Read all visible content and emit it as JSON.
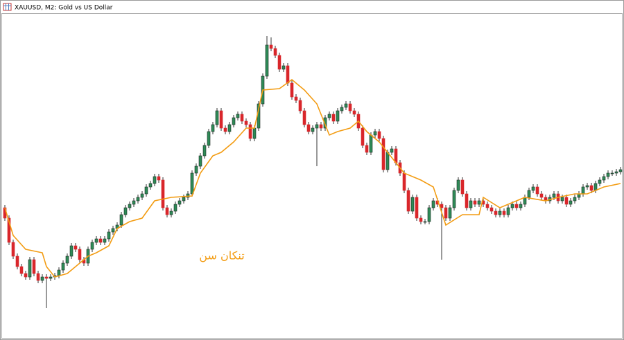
{
  "chart_data": {
    "type": "candlestick",
    "title": "XAUUSD, M2:  Gold vs US Dollar",
    "up_color": "#2e8b57",
    "down_color": "#d9262b",
    "ylim": [
      9,
      500
    ],
    "candles": [
      [
        200,
        204,
        181,
        185
      ],
      [
        185,
        189,
        146,
        150
      ],
      [
        150,
        154,
        126,
        130
      ],
      [
        130,
        134,
        111,
        115
      ],
      [
        115,
        119,
        101,
        105
      ],
      [
        105,
        109,
        96,
        100
      ],
      [
        100,
        129,
        96,
        125
      ],
      [
        125,
        129,
        101,
        105
      ],
      [
        105,
        109,
        91,
        95
      ],
      [
        95,
        104,
        91,
        100
      ],
      [
        100,
        104,
        55,
        98
      ],
      [
        98,
        104,
        94,
        100
      ],
      [
        100,
        106,
        96,
        102
      ],
      [
        102,
        114,
        98,
        110
      ],
      [
        110,
        124,
        106,
        120
      ],
      [
        120,
        134,
        116,
        130
      ],
      [
        130,
        149,
        126,
        145
      ],
      [
        145,
        149,
        136,
        140
      ],
      [
        140,
        144,
        121,
        125
      ],
      [
        125,
        129,
        116,
        120
      ],
      [
        120,
        144,
        116,
        140
      ],
      [
        140,
        154,
        136,
        150
      ],
      [
        150,
        159,
        146,
        155
      ],
      [
        155,
        159,
        146,
        150
      ],
      [
        150,
        159,
        146,
        155
      ],
      [
        155,
        169,
        151,
        165
      ],
      [
        165,
        174,
        161,
        170
      ],
      [
        170,
        179,
        166,
        175
      ],
      [
        175,
        194,
        171,
        190
      ],
      [
        190,
        204,
        186,
        200
      ],
      [
        200,
        209,
        196,
        205
      ],
      [
        205,
        214,
        201,
        210
      ],
      [
        210,
        219,
        206,
        215
      ],
      [
        215,
        224,
        211,
        220
      ],
      [
        220,
        234,
        216,
        230
      ],
      [
        230,
        239,
        226,
        235
      ],
      [
        235,
        249,
        231,
        245
      ],
      [
        245,
        249,
        236,
        240
      ],
      [
        240,
        244,
        196,
        200
      ],
      [
        200,
        204,
        186,
        190
      ],
      [
        190,
        199,
        186,
        195
      ],
      [
        195,
        209,
        191,
        205
      ],
      [
        205,
        214,
        201,
        210
      ],
      [
        210,
        219,
        206,
        215
      ],
      [
        215,
        224,
        211,
        220
      ],
      [
        220,
        254,
        216,
        250
      ],
      [
        250,
        264,
        246,
        260
      ],
      [
        260,
        279,
        256,
        275
      ],
      [
        275,
        294,
        271,
        290
      ],
      [
        290,
        314,
        286,
        310
      ],
      [
        310,
        324,
        306,
        320
      ],
      [
        320,
        344,
        316,
        340
      ],
      [
        340,
        344,
        311,
        315
      ],
      [
        315,
        319,
        306,
        310
      ],
      [
        310,
        324,
        306,
        320
      ],
      [
        320,
        334,
        316,
        330
      ],
      [
        330,
        339,
        326,
        335
      ],
      [
        335,
        339,
        321,
        325
      ],
      [
        325,
        329,
        316,
        320
      ],
      [
        320,
        324,
        296,
        300
      ],
      [
        300,
        319,
        296,
        315
      ],
      [
        315,
        354,
        311,
        350
      ],
      [
        350,
        394,
        346,
        390
      ],
      [
        390,
        448,
        386,
        435
      ],
      [
        435,
        446,
        426,
        430
      ],
      [
        430,
        434,
        416,
        420
      ],
      [
        420,
        424,
        396,
        400
      ],
      [
        400,
        409,
        396,
        405
      ],
      [
        405,
        409,
        376,
        380
      ],
      [
        380,
        384,
        356,
        360
      ],
      [
        360,
        364,
        351,
        355
      ],
      [
        355,
        359,
        336,
        340
      ],
      [
        340,
        344,
        316,
        320
      ],
      [
        320,
        324,
        306,
        310
      ],
      [
        310,
        319,
        306,
        315
      ],
      [
        315,
        324,
        260,
        320
      ],
      [
        320,
        324,
        311,
        315
      ],
      [
        315,
        334,
        311,
        330
      ],
      [
        330,
        339,
        326,
        335
      ],
      [
        335,
        339,
        321,
        325
      ],
      [
        325,
        344,
        321,
        340
      ],
      [
        340,
        349,
        336,
        345
      ],
      [
        345,
        354,
        341,
        350
      ],
      [
        350,
        354,
        336,
        340
      ],
      [
        340,
        344,
        331,
        335
      ],
      [
        335,
        339,
        311,
        315
      ],
      [
        315,
        319,
        286,
        290
      ],
      [
        290,
        294,
        276,
        280
      ],
      [
        280,
        309,
        276,
        305
      ],
      [
        305,
        314,
        301,
        310
      ],
      [
        310,
        314,
        296,
        300
      ],
      [
        300,
        304,
        251,
        255
      ],
      [
        255,
        284,
        251,
        280
      ],
      [
        280,
        289,
        276,
        285
      ],
      [
        285,
        289,
        261,
        265
      ],
      [
        265,
        269,
        246,
        250
      ],
      [
        250,
        254,
        221,
        225
      ],
      [
        225,
        229,
        191,
        195
      ],
      [
        195,
        219,
        191,
        215
      ],
      [
        215,
        219,
        181,
        185
      ],
      [
        185,
        189,
        176,
        180
      ],
      [
        180,
        184,
        176,
        180
      ],
      [
        180,
        204,
        176,
        200
      ],
      [
        200,
        214,
        196,
        210
      ],
      [
        210,
        214,
        201,
        205
      ],
      [
        205,
        209,
        125,
        200
      ],
      [
        200,
        204,
        181,
        185
      ],
      [
        185,
        204,
        181,
        200
      ],
      [
        200,
        229,
        196,
        225
      ],
      [
        225,
        244,
        221,
        240
      ],
      [
        240,
        244,
        216,
        220
      ],
      [
        220,
        224,
        196,
        200
      ],
      [
        200,
        214,
        196,
        210
      ],
      [
        210,
        214,
        201,
        205
      ],
      [
        205,
        214,
        201,
        210
      ],
      [
        210,
        214,
        201,
        205
      ],
      [
        205,
        209,
        196,
        200
      ],
      [
        200,
        204,
        191,
        195
      ],
      [
        195,
        199,
        186,
        190
      ],
      [
        190,
        199,
        186,
        195
      ],
      [
        195,
        199,
        186,
        190
      ],
      [
        190,
        204,
        186,
        200
      ],
      [
        200,
        209,
        196,
        205
      ],
      [
        205,
        209,
        196,
        200
      ],
      [
        200,
        209,
        196,
        205
      ],
      [
        205,
        219,
        201,
        215
      ],
      [
        215,
        229,
        211,
        225
      ],
      [
        225,
        234,
        221,
        230
      ],
      [
        230,
        234,
        216,
        220
      ],
      [
        220,
        224,
        211,
        215
      ],
      [
        215,
        219,
        206,
        210
      ],
      [
        210,
        219,
        206,
        215
      ],
      [
        215,
        224,
        211,
        220
      ],
      [
        220,
        224,
        206,
        210
      ],
      [
        210,
        219,
        206,
        215
      ],
      [
        215,
        219,
        201,
        205
      ],
      [
        205,
        214,
        201,
        210
      ],
      [
        210,
        219,
        206,
        215
      ],
      [
        215,
        224,
        211,
        220
      ],
      [
        220,
        234,
        216,
        230
      ],
      [
        230,
        236,
        226,
        232
      ],
      [
        232,
        236,
        221,
        225
      ],
      [
        225,
        239,
        221,
        235
      ],
      [
        235,
        244,
        231,
        240
      ],
      [
        240,
        249,
        236,
        245
      ],
      [
        245,
        254,
        241,
        250
      ],
      [
        250,
        254,
        246,
        250
      ],
      [
        250,
        256,
        246,
        252
      ],
      [
        252,
        259,
        248,
        255
      ]
    ],
    "line": {
      "color": "#f39c12",
      "x": [
        0,
        2,
        5,
        9,
        10,
        12,
        15,
        17,
        20,
        22,
        25,
        27,
        30,
        33,
        36,
        40,
        45,
        47,
        50,
        52,
        55,
        58,
        60,
        62,
        66,
        69,
        72,
        75,
        78,
        80,
        83,
        85,
        87,
        90,
        92,
        96,
        100,
        103,
        106,
        110,
        114,
        115,
        119,
        121,
        125,
        130,
        133,
        137,
        140,
        144,
        148
      ],
      "values": [
        200,
        160,
        140,
        135,
        115,
        100,
        105,
        115,
        130,
        135,
        145,
        170,
        180,
        185,
        210,
        215,
        217,
        250,
        275,
        280,
        295,
        315,
        315,
        370,
        372,
        385,
        370,
        350,
        305,
        310,
        315,
        325,
        310,
        295,
        280,
        250,
        240,
        230,
        175,
        190,
        190,
        215,
        200,
        205,
        215,
        210,
        215,
        220,
        220,
        230,
        235
      ]
    },
    "annotations": [
      {
        "text": "تنکان سن",
        "color": "#f39c12"
      }
    ]
  }
}
